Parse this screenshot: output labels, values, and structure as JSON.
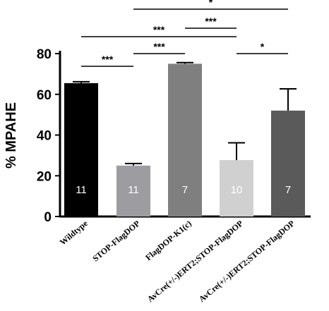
{
  "chart_data": {
    "type": "bar",
    "y_label": "% MPAHE",
    "categories": [
      "Wildtype",
      "STOP-FlagDOP",
      "FlagDOP-K1(c)",
      "AvCre(+/-)ERT2;STOP-FlagDOP",
      "AvCre(+/-)ERT2;STOP-FlagDOP"
    ],
    "values": [
      65.5,
      25,
      75,
      27.7,
      52
    ],
    "errors": [
      0.7,
      1,
      0.6,
      8.5,
      10.7
    ],
    "colors": [
      "#000000",
      "#9c9ca1",
      "#7f7f7f",
      "#d0d0d0",
      "#5a5a5a"
    ],
    "n_labels": [
      11,
      11,
      7,
      10,
      7
    ],
    "ylim": [
      0,
      80
    ],
    "yticks": [
      0,
      20,
      40,
      60,
      80
    ],
    "comparisons": [
      {
        "label": "***",
        "from": "Wildtype",
        "to": "STOP-FlagDOP"
      },
      {
        "label": "***",
        "from": "STOP-FlagDOP",
        "to": "FlagDOP-K1(c)"
      },
      {
        "label": "*",
        "from": "AvCre(+/-)ERT2;STOP-FlagDOP#3",
        "to": "AvCre(+/-)ERT2;STOP-FlagDOP#4"
      },
      {
        "label": "***",
        "from": "Wildtype",
        "to": "AvCre(+/-)ERT2;STOP-FlagDOP#3"
      },
      {
        "label": "***",
        "from": "FlagDOP-K1(c)",
        "to": "AvCre(+/-)ERT2;STOP-FlagDOP#3"
      },
      {
        "label": "*",
        "from": "STOP-FlagDOP",
        "to": "AvCre(+/-)ERT2;STOP-FlagDOP#4"
      }
    ]
  }
}
